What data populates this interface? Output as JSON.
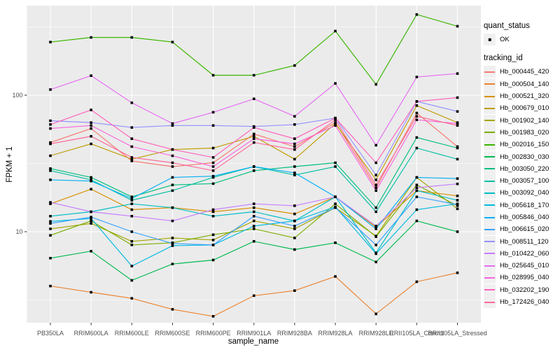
{
  "figure": {
    "background": "#FFFFFF",
    "panel_background": "#EBEBEB",
    "grid_color": "#FFFFFF",
    "tick_color": "#333333",
    "tick_label_color": "#4D4D4D",
    "point_color": "#000000"
  },
  "chart_data": {
    "type": "line",
    "title": "",
    "xlabel": "sample_name",
    "ylabel": "FPKM + 1",
    "y_scale": "log10",
    "ylim": [
      2.15,
      453
    ],
    "grid": "on",
    "legend_position": "right",
    "point_marker": "small-black-square",
    "y_ticks": [
      {
        "value": 10,
        "label": "10"
      },
      {
        "value": 100,
        "label": "100"
      }
    ],
    "y_minor_ticks": [
      3.162,
      31.623,
      316.228
    ],
    "categories": [
      "PB350LA",
      "RRIM600LA",
      "RRIM600LE",
      "RRIM600SE",
      "RRIM600PE",
      "RRIM901LA",
      "RRIM928BA",
      "RRIM928LA",
      "RRIM928LE",
      "RRII105LA_Control",
      "RRII105LA_Stressed"
    ],
    "series": [
      {
        "tracking_id": "Hb_000445_420",
        "quant_status": "OK",
        "color": "#F8766D",
        "values": [
          45,
          57,
          33,
          30,
          32,
          52,
          42,
          63,
          21,
          74,
          42
        ]
      },
      {
        "tracking_id": "Hb_000504_140",
        "quant_status": "OK",
        "color": "#EA8331",
        "values": [
          4.0,
          3.6,
          3.25,
          2.7,
          2.4,
          3.4,
          3.7,
          4.7,
          2.5,
          4.3,
          5.0
        ]
      },
      {
        "tracking_id": "Hb_000521_320",
        "quant_status": "OK",
        "color": "#D89000",
        "values": [
          16,
          20.5,
          14.5,
          15,
          14,
          15,
          13.5,
          18,
          10.8,
          20,
          18.3
        ]
      },
      {
        "tracking_id": "Hb_000679_010",
        "quant_status": "OK",
        "color": "#C09B00",
        "values": [
          36,
          44,
          34,
          40,
          41,
          50,
          34,
          62,
          24,
          84,
          63
        ]
      },
      {
        "tracking_id": "Hb_001902_140",
        "quant_status": "OK",
        "color": "#A3A500",
        "values": [
          10.5,
          11.5,
          8.5,
          9,
          8.7,
          12,
          10.5,
          15,
          9.3,
          25,
          14.7
        ]
      },
      {
        "tracking_id": "Hb_001983_020",
        "quant_status": "OK",
        "color": "#7CAE00",
        "values": [
          9.4,
          12,
          8,
          8.3,
          9.5,
          10.5,
          9.0,
          16,
          9.2,
          22,
          15.5
        ]
      },
      {
        "tracking_id": "Hb_002016_150",
        "quant_status": "OK",
        "color": "#39B600",
        "values": [
          245,
          265,
          265,
          245,
          140,
          140,
          165,
          295,
          120,
          390,
          320
        ]
      },
      {
        "tracking_id": "Hb_002830_030",
        "quant_status": "OK",
        "color": "#00BB4E",
        "values": [
          6.4,
          7.2,
          4.4,
          5.8,
          6.2,
          8.5,
          7.4,
          8.3,
          6.0,
          12,
          10
        ]
      },
      {
        "tracking_id": "Hb_003050_220",
        "quant_status": "OK",
        "color": "#00BF7D",
        "values": [
          29,
          25,
          18,
          22,
          22.5,
          28,
          30,
          32,
          15,
          49,
          41
        ]
      },
      {
        "tracking_id": "Hb_003057_100",
        "quant_status": "OK",
        "color": "#00C1A3",
        "values": [
          28,
          24,
          17,
          20,
          25,
          30,
          26,
          30,
          14,
          41,
          34
        ]
      },
      {
        "tracking_id": "Hb_003092_040",
        "quant_status": "OK",
        "color": "#00BFC4",
        "values": [
          13,
          14,
          16,
          15,
          13,
          14,
          12,
          18,
          7,
          20,
          17
        ]
      },
      {
        "tracking_id": "Hb_005618_170",
        "quant_status": "OK",
        "color": "#00BAE0",
        "values": [
          11.9,
          12.5,
          5.6,
          7.9,
          8,
          11,
          12,
          15.2,
          6.9,
          14.5,
          16
        ]
      },
      {
        "tracking_id": "Hb_005846_040",
        "quant_status": "OK",
        "color": "#00B0F6",
        "values": [
          24,
          23.5,
          17.5,
          25,
          25.5,
          30,
          27,
          18,
          10.5,
          25,
          24.5
        ]
      },
      {
        "tracking_id": "Hb_006615_020",
        "quant_status": "OK",
        "color": "#35A2FF",
        "values": [
          11.5,
          12.8,
          10,
          8.2,
          8,
          13,
          11,
          15,
          8,
          18,
          15.8
        ]
      },
      {
        "tracking_id": "Hb_008511_120",
        "quant_status": "OK",
        "color": "#9590FF",
        "values": [
          65,
          63,
          58,
          60,
          60,
          59,
          61,
          68,
          26,
          90,
          76
        ]
      },
      {
        "tracking_id": "Hb_010422_060",
        "quant_status": "OK",
        "color": "#C77CFF",
        "values": [
          16.4,
          14,
          13,
          12,
          14.5,
          16,
          15.5,
          18,
          11,
          21,
          22.4
        ]
      },
      {
        "tracking_id": "Hb_025645_010",
        "quant_status": "OK",
        "color": "#E76BF3",
        "values": [
          110,
          139,
          88,
          62,
          75,
          94,
          70,
          122,
          43,
          136,
          144
        ]
      },
      {
        "tracking_id": "Hb_028995_040",
        "quant_status": "OK",
        "color": "#FA62DB",
        "values": [
          57,
          60,
          42,
          36,
          30,
          48,
          44,
          60,
          20,
          66,
          62
        ]
      },
      {
        "tracking_id": "Hb_032202_190",
        "quant_status": "OK",
        "color": "#FF62BC",
        "values": [
          61,
          78,
          48,
          40,
          35,
          58,
          48,
          68,
          32,
          90,
          96
        ]
      },
      {
        "tracking_id": "Hb_172426_040",
        "quant_status": "OK",
        "color": "#FF6A98",
        "values": [
          44,
          50,
          35,
          32,
          28,
          45,
          40,
          66,
          22,
          70,
          60
        ]
      }
    ],
    "legend": {
      "quant_status_title": "quant_status",
      "quant_status_items": [
        {
          "label": "OK"
        }
      ],
      "tracking_id_title": "tracking_id"
    }
  }
}
